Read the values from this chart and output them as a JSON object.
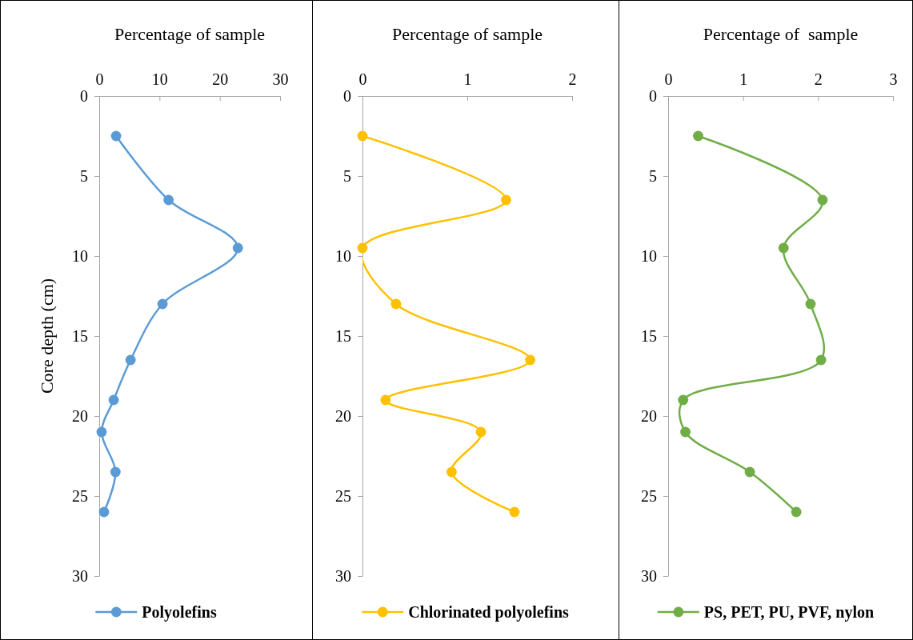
{
  "chart_data": [
    {
      "type": "line",
      "xlabel": "Percentage of sample",
      "ylabel": "Core depth (cm)",
      "xlim": [
        0,
        30
      ],
      "xticks": [
        0,
        10,
        20,
        30
      ],
      "ylim": [
        30,
        0
      ],
      "yticks": [
        0,
        5,
        10,
        15,
        20,
        25,
        30
      ],
      "marker": "circle",
      "legend": "bottom",
      "grid": false,
      "series": [
        {
          "name": "Polyolefins",
          "color": "#5b9bd5",
          "x": [
            2.8,
            11.5,
            23,
            10.5,
            5.2,
            2.4,
            0.4,
            2.7,
            0.8
          ],
          "values": [
            2.5,
            6.5,
            9.5,
            13,
            16.5,
            19,
            21,
            23.5,
            26
          ]
        }
      ]
    },
    {
      "type": "line",
      "xlabel": "Percentage of sample",
      "xlim": [
        0,
        2
      ],
      "xticks": [
        0,
        1,
        2
      ],
      "ylim": [
        30,
        0
      ],
      "yticks": [
        0,
        5,
        10,
        15,
        20,
        25,
        30
      ],
      "marker": "circle",
      "legend": "bottom",
      "grid": false,
      "series": [
        {
          "name": "Chlorinated polyolefins",
          "color": "#ffc000",
          "x": [
            0,
            1.37,
            0,
            0.32,
            1.6,
            0.22,
            1.13,
            0.85,
            1.45
          ],
          "values": [
            2.5,
            6.5,
            9.5,
            13,
            16.5,
            19,
            21,
            23.5,
            26
          ]
        }
      ]
    },
    {
      "type": "line",
      "xlabel": "Percentage of  sample",
      "xlim": [
        0,
        3
      ],
      "xticks": [
        0,
        1,
        2,
        3
      ],
      "ylim": [
        30,
        0
      ],
      "yticks": [
        0,
        5,
        10,
        15,
        20,
        25,
        30
      ],
      "marker": "circle",
      "legend": "bottom",
      "grid": false,
      "series": [
        {
          "name": "PS, PET, PU, PVF, nylon",
          "color": "#70ad47",
          "x": [
            0.4,
            2.06,
            1.54,
            1.9,
            2.04,
            0.2,
            0.23,
            1.09,
            1.71
          ],
          "values": [
            2.5,
            6.5,
            9.5,
            13,
            16.5,
            19,
            21,
            23.5,
            26
          ]
        }
      ]
    }
  ]
}
